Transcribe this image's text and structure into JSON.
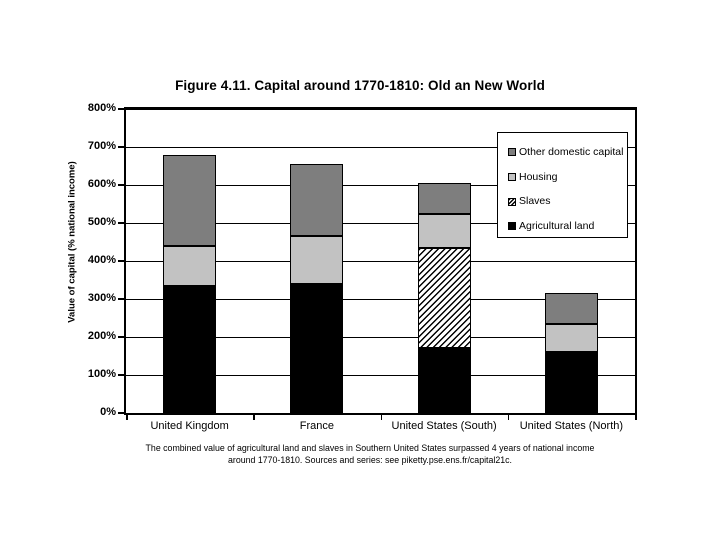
{
  "chart_data": {
    "type": "bar",
    "stacked": true,
    "title": "Figure 4.11. Capital around 1770-1810: Old an New World",
    "ylabel": "Value of capital (% national income)",
    "xlabel": "",
    "ylim": [
      0,
      800
    ],
    "ytick_step": 100,
    "yticks": [
      "0%",
      "100%",
      "200%",
      "300%",
      "400%",
      "500%",
      "600%",
      "700%",
      "800%"
    ],
    "grid": true,
    "categories": [
      "United Kingdom",
      "France",
      "United States (South)",
      "United States (North)"
    ],
    "stack_order": "bottom-to-top",
    "series": [
      {
        "name": "Agricultural land",
        "color": "#000000",
        "pattern": "solid",
        "values": [
          335,
          340,
          170,
          160
        ]
      },
      {
        "name": "Slaves",
        "color": "#ffffff",
        "pattern": "diagonal-hatch",
        "values": [
          0,
          0,
          265,
          0
        ]
      },
      {
        "name": "Housing",
        "color": "#c2c2c2",
        "pattern": "solid",
        "values": [
          105,
          125,
          90,
          75
        ]
      },
      {
        "name": "Other domestic capital",
        "color": "#7e7e7e",
        "pattern": "solid",
        "values": [
          240,
          190,
          80,
          80
        ]
      }
    ],
    "totals": [
      680,
      655,
      605,
      315
    ],
    "legend": {
      "position": "top-right-inside-plot",
      "entries": [
        "Other domestic capital",
        "Housing",
        "Slaves",
        "Agricultural land"
      ]
    },
    "caption_lines": [
      "The combined value of agricultural land and slaves in Southern United States surpassed 4 years of national income",
      "around 1770-1810. Sources and series: see piketty.pse.ens.fr/capital21c."
    ],
    "axis_color": "#000000",
    "background_color": "#ffffff"
  }
}
